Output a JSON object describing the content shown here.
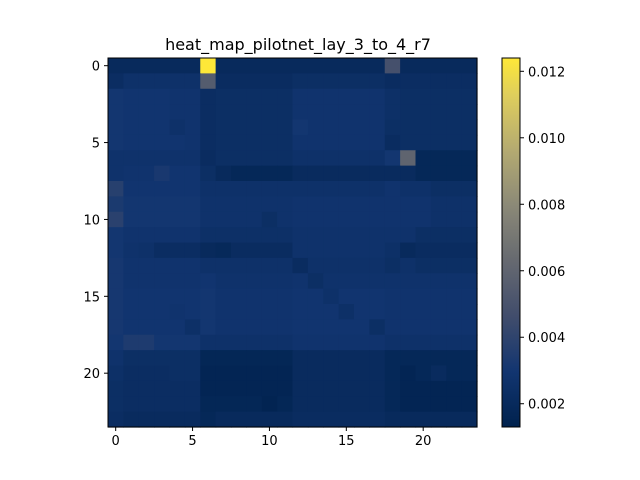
{
  "chart_data": {
    "type": "heatmap",
    "title": "heat_map_pilotnet_lay_3_to_4_r7",
    "xlabel": "",
    "ylabel": "",
    "rows": 24,
    "cols": 24,
    "x_ticks": [
      0,
      5,
      10,
      15,
      20
    ],
    "y_ticks": [
      0,
      5,
      10,
      15,
      20
    ],
    "colormap": "cividis",
    "vmin": 0.0013,
    "vmax": 0.0124,
    "colorbar_ticks": [
      0.002,
      0.004,
      0.006,
      0.008,
      0.01,
      0.012
    ],
    "colorbar_tick_labels": [
      "0.002",
      "0.004",
      "0.006",
      "0.008",
      "0.010",
      "0.012"
    ],
    "values": [
      [
        0.002,
        0.002,
        0.002,
        0.002,
        0.002,
        0.002,
        0.0124,
        0.002,
        0.002,
        0.002,
        0.002,
        0.002,
        0.002,
        0.002,
        0.002,
        0.002,
        0.002,
        0.002,
        0.0048,
        0.002,
        0.002,
        0.002,
        0.002,
        0.002
      ],
      [
        0.0023,
        0.0026,
        0.0026,
        0.0026,
        0.0026,
        0.0026,
        0.0055,
        0.0022,
        0.0022,
        0.0022,
        0.0022,
        0.0022,
        0.0024,
        0.0024,
        0.0024,
        0.0024,
        0.0024,
        0.0024,
        0.0022,
        0.0023,
        0.0023,
        0.0023,
        0.0023,
        0.0023
      ],
      [
        0.003,
        0.0029,
        0.0029,
        0.0029,
        0.0028,
        0.0028,
        0.0023,
        0.0024,
        0.0024,
        0.0024,
        0.0024,
        0.0024,
        0.0028,
        0.0028,
        0.0028,
        0.0028,
        0.0028,
        0.0028,
        0.0025,
        0.0024,
        0.0024,
        0.0024,
        0.0024,
        0.0024
      ],
      [
        0.003,
        0.0029,
        0.0029,
        0.0029,
        0.0028,
        0.0028,
        0.0023,
        0.0024,
        0.0024,
        0.0024,
        0.0024,
        0.0024,
        0.0028,
        0.0028,
        0.0028,
        0.0028,
        0.0028,
        0.0028,
        0.0025,
        0.0024,
        0.0024,
        0.0024,
        0.0024,
        0.0024
      ],
      [
        0.003,
        0.0029,
        0.0029,
        0.0029,
        0.0026,
        0.0028,
        0.0023,
        0.0024,
        0.0024,
        0.0024,
        0.0024,
        0.0024,
        0.003,
        0.0028,
        0.0028,
        0.0028,
        0.0028,
        0.0028,
        0.0024,
        0.0024,
        0.0024,
        0.0024,
        0.0024,
        0.0024
      ],
      [
        0.003,
        0.0029,
        0.0029,
        0.0029,
        0.0029,
        0.0028,
        0.0023,
        0.0024,
        0.0024,
        0.0024,
        0.0024,
        0.0024,
        0.0028,
        0.0028,
        0.0028,
        0.0028,
        0.0028,
        0.0028,
        0.0022,
        0.0024,
        0.0024,
        0.0024,
        0.0024,
        0.0024
      ],
      [
        0.0027,
        0.0027,
        0.0027,
        0.0027,
        0.0027,
        0.0027,
        0.0022,
        0.0024,
        0.0024,
        0.0024,
        0.0024,
        0.0024,
        0.0026,
        0.0026,
        0.0026,
        0.0026,
        0.0026,
        0.0026,
        0.003,
        0.006,
        0.0018,
        0.0018,
        0.0018,
        0.0018
      ],
      [
        0.0027,
        0.0028,
        0.0028,
        0.0032,
        0.0029,
        0.0029,
        0.0024,
        0.002,
        0.0018,
        0.0018,
        0.0018,
        0.0018,
        0.0021,
        0.0021,
        0.0021,
        0.0021,
        0.0021,
        0.0021,
        0.0021,
        0.0021,
        0.0018,
        0.0018,
        0.0018,
        0.0018
      ],
      [
        0.0037,
        0.0029,
        0.0029,
        0.0029,
        0.0029,
        0.0029,
        0.0026,
        0.0026,
        0.0026,
        0.0026,
        0.0026,
        0.0026,
        0.0026,
        0.0026,
        0.0026,
        0.0026,
        0.0026,
        0.0026,
        0.0028,
        0.0026,
        0.0026,
        0.0024,
        0.0024,
        0.0024
      ],
      [
        0.0033,
        0.003,
        0.003,
        0.003,
        0.003,
        0.003,
        0.0027,
        0.0027,
        0.0027,
        0.0027,
        0.0027,
        0.0027,
        0.0028,
        0.0028,
        0.0028,
        0.0028,
        0.0028,
        0.0028,
        0.0028,
        0.0028,
        0.0028,
        0.0026,
        0.0026,
        0.0026
      ],
      [
        0.0038,
        0.003,
        0.003,
        0.003,
        0.003,
        0.003,
        0.0027,
        0.0027,
        0.0027,
        0.0027,
        0.0024,
        0.0027,
        0.0028,
        0.0028,
        0.0028,
        0.0028,
        0.0028,
        0.0028,
        0.0028,
        0.0028,
        0.0028,
        0.0026,
        0.0026,
        0.0026
      ],
      [
        0.003,
        0.0028,
        0.0028,
        0.0028,
        0.0028,
        0.0028,
        0.0025,
        0.0025,
        0.0025,
        0.0025,
        0.0025,
        0.0025,
        0.0027,
        0.0027,
        0.0027,
        0.0027,
        0.0027,
        0.0027,
        0.0027,
        0.0027,
        0.0024,
        0.0024,
        0.0024,
        0.0024
      ],
      [
        0.003,
        0.0027,
        0.0026,
        0.0023,
        0.0023,
        0.0023,
        0.002,
        0.0019,
        0.0022,
        0.0022,
        0.0022,
        0.0022,
        0.0027,
        0.0027,
        0.0027,
        0.0027,
        0.0027,
        0.0027,
        0.0025,
        0.002,
        0.0022,
        0.0022,
        0.0022,
        0.0022
      ],
      [
        0.0031,
        0.0028,
        0.0028,
        0.0028,
        0.0028,
        0.0028,
        0.0026,
        0.0026,
        0.0026,
        0.0026,
        0.0026,
        0.0026,
        0.0022,
        0.0026,
        0.0026,
        0.0026,
        0.0026,
        0.0026,
        0.0024,
        0.0026,
        0.0024,
        0.0024,
        0.0024,
        0.0024
      ],
      [
        0.0031,
        0.0028,
        0.0028,
        0.0028,
        0.0028,
        0.0028,
        0.0029,
        0.0027,
        0.0027,
        0.0027,
        0.0027,
        0.0027,
        0.0028,
        0.0024,
        0.0027,
        0.0027,
        0.0027,
        0.0027,
        0.0027,
        0.0027,
        0.0027,
        0.0027,
        0.0027,
        0.0027
      ],
      [
        0.0031,
        0.0029,
        0.0029,
        0.0029,
        0.0029,
        0.0029,
        0.003,
        0.0028,
        0.0028,
        0.0028,
        0.0028,
        0.0028,
        0.0029,
        0.0029,
        0.0026,
        0.0029,
        0.0029,
        0.0029,
        0.0028,
        0.0028,
        0.0028,
        0.0028,
        0.0028,
        0.0028
      ],
      [
        0.0031,
        0.0029,
        0.0029,
        0.0029,
        0.0028,
        0.0029,
        0.003,
        0.0028,
        0.0028,
        0.0028,
        0.0028,
        0.0028,
        0.0029,
        0.0029,
        0.0029,
        0.0025,
        0.0029,
        0.0029,
        0.0028,
        0.0028,
        0.0028,
        0.0028,
        0.0028,
        0.0028
      ],
      [
        0.0031,
        0.0029,
        0.0029,
        0.0029,
        0.0029,
        0.0025,
        0.003,
        0.0028,
        0.0028,
        0.0028,
        0.0028,
        0.0028,
        0.0029,
        0.0029,
        0.0029,
        0.0029,
        0.0029,
        0.0024,
        0.0028,
        0.0028,
        0.0028,
        0.0028,
        0.0028,
        0.0028
      ],
      [
        0.003,
        0.0034,
        0.0034,
        0.003,
        0.003,
        0.003,
        0.0026,
        0.0026,
        0.0026,
        0.0026,
        0.0026,
        0.0026,
        0.0028,
        0.0028,
        0.0028,
        0.0028,
        0.0028,
        0.0028,
        0.0026,
        0.0026,
        0.0026,
        0.0026,
        0.0026,
        0.0026
      ],
      [
        0.0027,
        0.0024,
        0.0024,
        0.0024,
        0.0024,
        0.0024,
        0.0017,
        0.0017,
        0.0017,
        0.0017,
        0.0017,
        0.0017,
        0.0021,
        0.0021,
        0.0021,
        0.0021,
        0.0021,
        0.0021,
        0.0018,
        0.0018,
        0.0018,
        0.0018,
        0.0018,
        0.0018
      ],
      [
        0.0025,
        0.0023,
        0.0023,
        0.0023,
        0.0024,
        0.0024,
        0.0016,
        0.0016,
        0.0016,
        0.0016,
        0.0016,
        0.0016,
        0.0021,
        0.0021,
        0.0021,
        0.0021,
        0.0021,
        0.0021,
        0.0018,
        0.0016,
        0.0018,
        0.0021,
        0.0018,
        0.0018
      ],
      [
        0.0024,
        0.0023,
        0.0023,
        0.0023,
        0.0023,
        0.0023,
        0.0016,
        0.0016,
        0.0016,
        0.0016,
        0.0016,
        0.0016,
        0.0021,
        0.0021,
        0.0021,
        0.0021,
        0.0021,
        0.0021,
        0.0018,
        0.0016,
        0.0016,
        0.0016,
        0.0016,
        0.0016
      ],
      [
        0.0024,
        0.0023,
        0.0023,
        0.0023,
        0.0023,
        0.0023,
        0.0017,
        0.0017,
        0.0017,
        0.0017,
        0.0015,
        0.0017,
        0.0021,
        0.0021,
        0.0021,
        0.0021,
        0.0021,
        0.0021,
        0.0018,
        0.0016,
        0.0016,
        0.0016,
        0.0016,
        0.0016
      ],
      [
        0.0023,
        0.0021,
        0.0021,
        0.0021,
        0.0021,
        0.0021,
        0.0018,
        0.002,
        0.002,
        0.002,
        0.002,
        0.002,
        0.0022,
        0.0022,
        0.0022,
        0.0022,
        0.0022,
        0.0022,
        0.002,
        0.002,
        0.002,
        0.002,
        0.002,
        0.002
      ]
    ]
  }
}
